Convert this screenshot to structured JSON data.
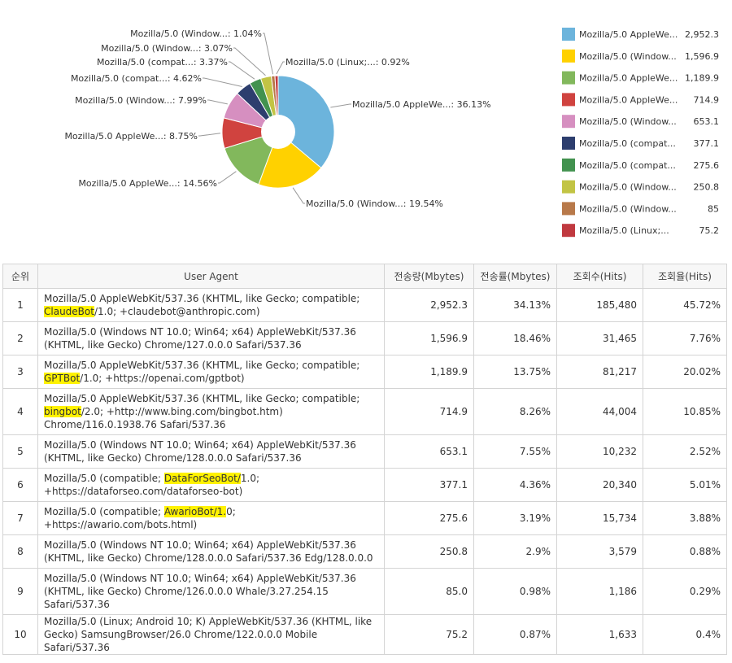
{
  "chart_data": {
    "type": "pie",
    "style": "donut",
    "title": "",
    "slices": [
      {
        "label": "Mozilla/5.0 AppleWe...",
        "value": 2952.3,
        "pct": "36.13%",
        "color": "#6cb4dc"
      },
      {
        "label": "Mozilla/5.0 (Window...",
        "value": 1596.9,
        "pct": "19.54%",
        "color": "#ffd100"
      },
      {
        "label": "Mozilla/5.0 AppleWe...",
        "value": 1189.9,
        "pct": "14.56%",
        "color": "#82b85c"
      },
      {
        "label": "Mozilla/5.0 AppleWe...",
        "value": 714.9,
        "pct": "8.75%",
        "color": "#d0433f"
      },
      {
        "label": "Mozilla/5.0 (Window...",
        "value": 653.1,
        "pct": "7.99%",
        "color": "#d68fc0"
      },
      {
        "label": "Mozilla/5.0 (compat...",
        "value": 377.1,
        "pct": "4.62%",
        "color": "#2d3e6e"
      },
      {
        "label": "Mozilla/5.0 (compat...",
        "value": 275.6,
        "pct": "3.37%",
        "color": "#42924f"
      },
      {
        "label": "Mozilla/5.0 (Window...",
        "value": 250.8,
        "pct": "3.07%",
        "color": "#c2c444"
      },
      {
        "label": "Mozilla/5.0 (Window...",
        "value": 85,
        "pct": "1.04%",
        "color": "#b8794a"
      },
      {
        "label": "Mozilla/5.0 (Linux;...",
        "value": 75.2,
        "pct": "0.92%",
        "color": "#c0393f"
      }
    ],
    "legend": [
      {
        "label": "Mozilla/5.0 AppleWe...",
        "value": "2,952.3"
      },
      {
        "label": "Mozilla/5.0 (Window...",
        "value": "1,596.9"
      },
      {
        "label": "Mozilla/5.0 AppleWe...",
        "value": "1,189.9"
      },
      {
        "label": "Mozilla/5.0 AppleWe...",
        "value": "714.9"
      },
      {
        "label": "Mozilla/5.0 (Window...",
        "value": "653.1"
      },
      {
        "label": "Mozilla/5.0 (compat...",
        "value": "377.1"
      },
      {
        "label": "Mozilla/5.0 (compat...",
        "value": "275.6"
      },
      {
        "label": "Mozilla/5.0 (Window...",
        "value": "250.8"
      },
      {
        "label": "Mozilla/5.0 (Window...",
        "value": "85"
      },
      {
        "label": "Mozilla/5.0 (Linux;...",
        "value": "75.2"
      }
    ],
    "legend_position": "right"
  },
  "table": {
    "headers": [
      "순위",
      "User Agent",
      "전송량(Mbytes)",
      "전송률(Mbytes)",
      "조회수(Hits)",
      "조회율(Hits)"
    ],
    "rows": [
      {
        "rank": "1",
        "ua": [
          "Mozilla/5.0 AppleWebKit/537.36 (KHTML, like Gecko; compatible; ",
          "#ClaudeBot",
          "/1.0; +claudebot@anthropic.com)"
        ],
        "mb": "2,952.3",
        "mbp": "34.13%",
        "hits": "185,480",
        "hitp": "45.72%"
      },
      {
        "rank": "2",
        "ua": [
          "Mozilla/5.0 (Windows NT 10.0; Win64; x64) AppleWebKit/537.36 (KHTML, like Gecko) Chrome/127.0.0.0 Safari/537.36"
        ],
        "mb": "1,596.9",
        "mbp": "18.46%",
        "hits": "31,465",
        "hitp": "7.76%"
      },
      {
        "rank": "3",
        "ua": [
          "Mozilla/5.0 AppleWebKit/537.36 (KHTML, like Gecko; compatible; ",
          "#GPTBot",
          "/1.0; +https://openai.com/gptbot)"
        ],
        "mb": "1,189.9",
        "mbp": "13.75%",
        "hits": "81,217",
        "hitp": "20.02%"
      },
      {
        "rank": "4",
        "ua": [
          "Mozilla/5.0 AppleWebKit/537.36 (KHTML, like Gecko; compatible; ",
          "#bingbot",
          "/2.0; +http://www.bing.com/bingbot.htm) Chrome/116.0.1938.76 Safari/537.36"
        ],
        "mb": "714.9",
        "mbp": "8.26%",
        "hits": "44,004",
        "hitp": "10.85%"
      },
      {
        "rank": "5",
        "ua": [
          "Mozilla/5.0 (Windows NT 10.0; Win64; x64) AppleWebKit/537.36 (KHTML, like Gecko) Chrome/128.0.0.0 Safari/537.36"
        ],
        "mb": "653.1",
        "mbp": "7.55%",
        "hits": "10,232",
        "hitp": "2.52%"
      },
      {
        "rank": "6",
        "ua": [
          "Mozilla/5.0 (compatible; ",
          "#DataForSeoBot/",
          "1.0; +https://dataforseo.com/dataforseo-bot)"
        ],
        "mb": "377.1",
        "mbp": "4.36%",
        "hits": "20,340",
        "hitp": "5.01%"
      },
      {
        "rank": "7",
        "ua": [
          "Mozilla/5.0 (compatible; ",
          "#AwarioBot/1.",
          "0; +https://awario.com/bots.html)"
        ],
        "mb": "275.6",
        "mbp": "3.19%",
        "hits": "15,734",
        "hitp": "3.88%"
      },
      {
        "rank": "8",
        "ua": [
          "Mozilla/5.0 (Windows NT 10.0; Win64; x64) AppleWebKit/537.36 (KHTML, like Gecko) Chrome/128.0.0.0 Safari/537.36 Edg/128.0.0.0"
        ],
        "mb": "250.8",
        "mbp": "2.9%",
        "hits": "3,579",
        "hitp": "0.88%"
      },
      {
        "rank": "9",
        "ua": [
          "Mozilla/5.0 (Windows NT 10.0; Win64; x64) AppleWebKit/537.36 (KHTML, like Gecko) Chrome/126.0.0.0 Whale/3.27.254.15 Safari/537.36"
        ],
        "mb": "85.0",
        "mbp": "0.98%",
        "hits": "1,186",
        "hitp": "0.29%"
      },
      {
        "rank": "10",
        "ua": [
          "Mozilla/5.0 (Linux; Android 10; K) AppleWebKit/537.36 (KHTML, like Gecko) SamsungBrowser/26.0 Chrome/122.0.0.0 Mobile Safari/537.36"
        ],
        "mb": "75.2",
        "mbp": "0.87%",
        "hits": "1,633",
        "hitp": "0.4%"
      }
    ]
  }
}
